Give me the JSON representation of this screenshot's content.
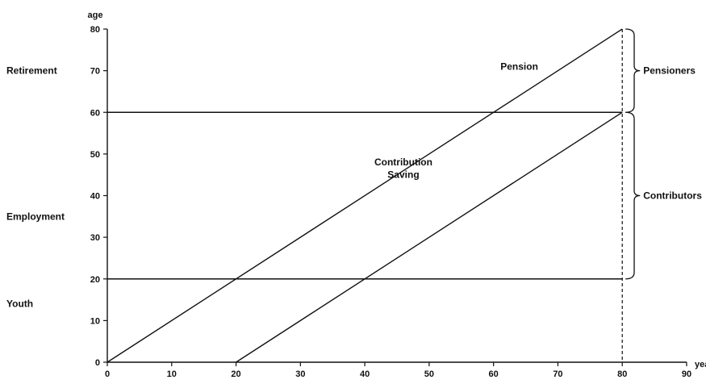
{
  "chart_data": {
    "type": "line",
    "xlabel": "year",
    "ylabel": "age",
    "xlim": [
      0,
      90
    ],
    "ylim": [
      0,
      80
    ],
    "x_ticks": [
      0,
      10,
      20,
      30,
      40,
      50,
      60,
      70,
      80,
      90
    ],
    "y_ticks": [
      0,
      10,
      20,
      30,
      40,
      50,
      60,
      70,
      80
    ],
    "series": [
      {
        "x": [
          0,
          80
        ],
        "y": [
          0,
          80
        ]
      },
      {
        "x": [
          20,
          80
        ],
        "y": [
          0,
          60
        ]
      }
    ],
    "horizontal_lines": [
      {
        "y": 20,
        "x_range": [
          0,
          80
        ]
      },
      {
        "y": 60,
        "x_range": [
          0,
          80
        ]
      }
    ],
    "vertical_dashed_line": {
      "x": 80,
      "y_range": [
        0,
        80
      ]
    },
    "phase_labels": [
      {
        "text": "Retirement",
        "age": 70
      },
      {
        "text": "Employment",
        "age": 35
      },
      {
        "text": "Youth",
        "age": 14
      }
    ],
    "annotations": [
      {
        "text": "Pension",
        "x": 64,
        "y": 71
      },
      {
        "text": "Contribution",
        "x": 46,
        "y": 48
      },
      {
        "text": "Saving",
        "x": 46,
        "y": 45
      }
    ],
    "braces": [
      {
        "label": "Pensioners",
        "y_range": [
          60,
          80
        ]
      },
      {
        "label": "Contributors",
        "y_range": [
          20,
          60
        ]
      }
    ]
  }
}
